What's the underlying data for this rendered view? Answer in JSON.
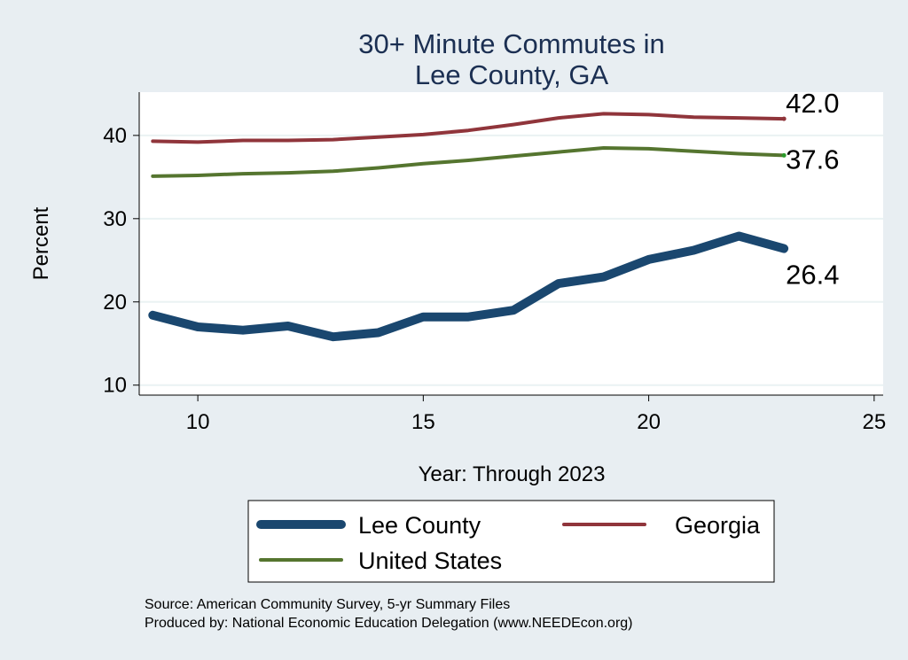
{
  "chart_data": {
    "type": "line",
    "title_lines": [
      "30+ Minute Commutes in",
      "Lee County, GA"
    ],
    "xlabel": "Year: Through 2023",
    "ylabel": "Percent",
    "xlim": [
      8.7,
      25.2
    ],
    "ylim": [
      8.8,
      45.2
    ],
    "xticks": [
      10,
      15,
      20,
      25
    ],
    "yticks": [
      10,
      20,
      30,
      40
    ],
    "grid": "horizontal",
    "x": [
      9,
      10,
      11,
      12,
      13,
      14,
      15,
      16,
      17,
      18,
      19,
      20,
      21,
      22,
      23
    ],
    "series": [
      {
        "name": "Lee County",
        "color": "#1a476f",
        "values": [
          18.4,
          17.0,
          16.6,
          17.1,
          15.8,
          16.3,
          18.2,
          18.2,
          19.0,
          22.2,
          23.0,
          25.1,
          26.2,
          27.9,
          26.4
        ],
        "end_label": "26.4"
      },
      {
        "name": "Georgia",
        "color": "#90353b",
        "values": [
          39.3,
          39.2,
          39.4,
          39.4,
          39.5,
          39.8,
          40.1,
          40.6,
          41.3,
          42.1,
          42.6,
          42.5,
          42.2,
          42.1,
          42.0
        ],
        "end_label": "42.0"
      },
      {
        "name": "United States",
        "color": "#55752f",
        "values": [
          35.1,
          35.2,
          35.4,
          35.5,
          35.7,
          36.1,
          36.6,
          37.0,
          37.5,
          38.0,
          38.5,
          38.4,
          38.1,
          37.8,
          37.6
        ],
        "end_label": "37.6"
      }
    ],
    "legend": [
      "Lee County",
      "Georgia",
      "United States"
    ],
    "legend_position": "bottom",
    "notes": [
      "Source: American Community Survey, 5-yr Summary Files",
      "Produced by: National Economic Education Delegation (www.NEEDEcon.org)"
    ]
  }
}
